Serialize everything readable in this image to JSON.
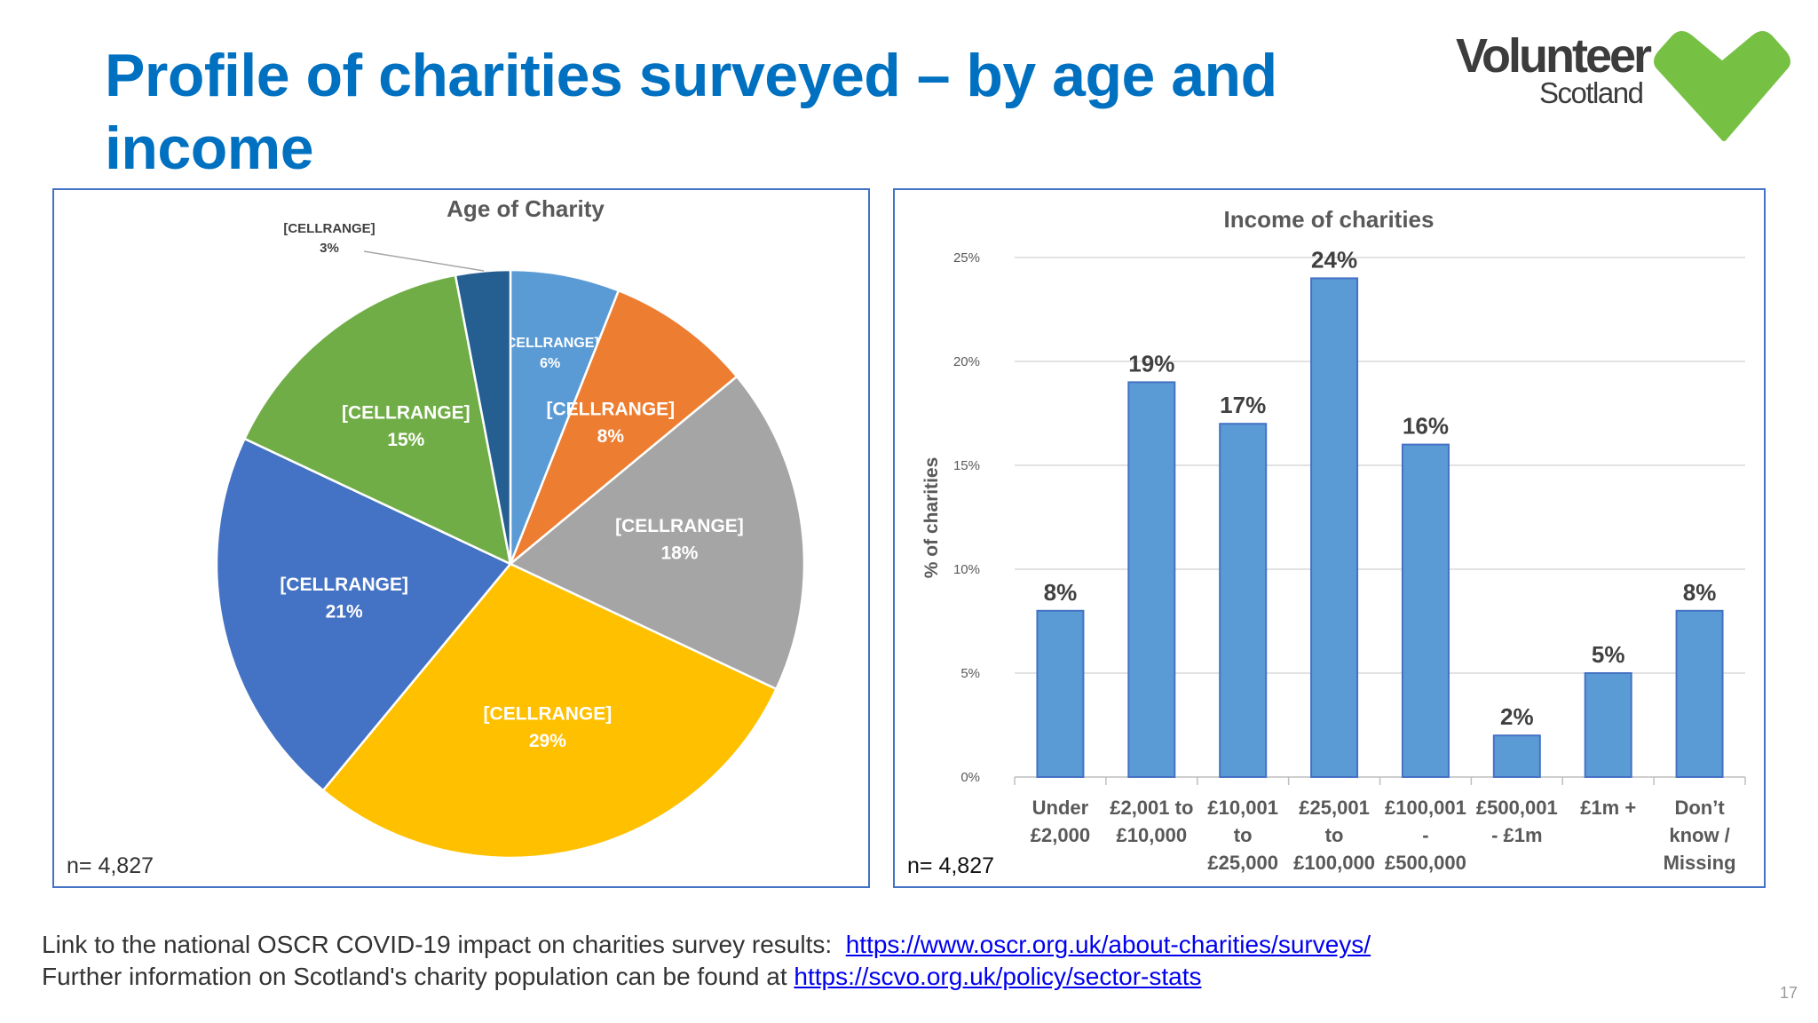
{
  "title": "Profile of charities surveyed – by age and income",
  "logo": {
    "line1": "Volunteer",
    "line2": "Scotland",
    "heart_color": "#76C043",
    "text_color": "#3C3C3C"
  },
  "footer": {
    "line1_text": "Link to the national OSCR COVID-19 impact on charities survey results:",
    "line1_link": "https://www.oscr.org.uk/about-charities/surveys/",
    "line2_text": "Further information on Scotland's charity population can be found at",
    "line2_link": "https://scvo.org.uk/policy/sector-stats"
  },
  "page_number": "17",
  "chart_data": [
    {
      "type": "pie",
      "title": "Age of Charity",
      "note": "n= 4,827",
      "slices": [
        {
          "label": "[CELLRANGE]",
          "value": 6,
          "display": "6%",
          "color": "#5B9BD5"
        },
        {
          "label": "[CELLRANGE]",
          "value": 8,
          "display": "8%",
          "color": "#ED7D31"
        },
        {
          "label": "[CELLRANGE]",
          "value": 18,
          "display": "18%",
          "color": "#A5A5A5"
        },
        {
          "label": "[CELLRANGE]",
          "value": 29,
          "display": "29%",
          "color": "#FFC000"
        },
        {
          "label": "[CELLRANGE]",
          "value": 21,
          "display": "21%",
          "color": "#4472C4"
        },
        {
          "label": "[CELLRANGE]",
          "value": 15,
          "display": "15%",
          "color": "#70AD47"
        },
        {
          "label": "[CELLRANGE]",
          "value": 3,
          "display": "3%",
          "color": "#255E91"
        }
      ]
    },
    {
      "type": "bar",
      "title": "Income of charities",
      "note": "n= 4,827",
      "ylabel": "% of charities",
      "xlabel": "",
      "ylim": [
        0,
        25
      ],
      "yticks": [
        "0%",
        "5%",
        "10%",
        "15%",
        "20%",
        "25%"
      ],
      "grid": true,
      "bar_color": "#5B9BD5",
      "categories": [
        [
          "Under",
          "£2,000"
        ],
        [
          "£2,001 to",
          "£10,000"
        ],
        [
          "£10,001",
          "to",
          "£25,000"
        ],
        [
          "£25,001",
          "to",
          "£100,000"
        ],
        [
          "£100,001",
          "-",
          "£500,000"
        ],
        [
          "£500,001",
          "- £1m"
        ],
        [
          "£1m +"
        ],
        [
          "Don’t",
          "know /",
          "Missing"
        ]
      ],
      "values": [
        8,
        19,
        17,
        24,
        16,
        2,
        5,
        8
      ],
      "labels": [
        "8%",
        "19%",
        "17%",
        "24%",
        "16%",
        "2%",
        "5%",
        "8%"
      ]
    }
  ]
}
